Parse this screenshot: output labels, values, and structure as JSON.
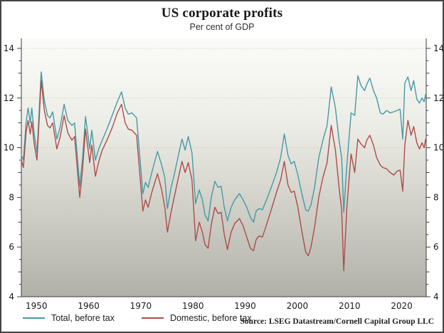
{
  "header": {
    "title": "US corporate profits",
    "subtitle": "Per cent of GDP"
  },
  "source": "Source: LSEG Datastream/Cornell Capital Group LLC",
  "legend": {
    "items": [
      {
        "label": "Total, before tax",
        "color": "#4799a3"
      },
      {
        "label": "Domestic, before tax",
        "color": "#ad4c48"
      }
    ]
  },
  "chart_data": {
    "type": "line",
    "title": "US corporate profits",
    "subtitle": "Per cent of GDP",
    "xlabel": "",
    "ylabel": "Per cent of GDP",
    "xlim": [
      1947.1,
      2024.7
    ],
    "ylim": [
      4,
      14.4
    ],
    "xticks": [
      1950,
      1960,
      1970,
      1980,
      1990,
      2000,
      2010,
      2020
    ],
    "yticks": [
      4,
      6,
      8,
      10,
      12,
      14
    ],
    "minor_tick_step": 0.5,
    "grid": "horizontal-dotted",
    "grid_color": "#c6c6be",
    "axis_color": "#3c3c3c",
    "label_color": "#1a1a1a",
    "bg_gradient": [
      "#fbfbf9",
      "#edede7",
      "#cfcfc7",
      "#b1b1a9"
    ],
    "legend_position": "bottom-left",
    "x": [
      1947.1,
      1947.5,
      1948.0,
      1948.4,
      1948.8,
      1949.1,
      1949.6,
      1950.1,
      1950.9,
      1951.5,
      1952.1,
      1952.6,
      1953.1,
      1953.9,
      1954.5,
      1955.3,
      1956.0,
      1956.8,
      1957.3,
      1958.3,
      1958.8,
      1959.4,
      1960.2,
      1960.6,
      1961.3,
      1962.0,
      1962.6,
      1963.5,
      1964.5,
      1965.5,
      1966.3,
      1967.0,
      1967.6,
      1968.3,
      1969.2,
      1970.4,
      1970.9,
      1971.4,
      1972.1,
      1973.2,
      1974.0,
      1974.6,
      1975.1,
      1975.8,
      1976.4,
      1977.1,
      1977.9,
      1978.5,
      1979.1,
      1979.8,
      1980.5,
      1981.2,
      1981.8,
      1982.3,
      1982.9,
      1983.5,
      1984.2,
      1984.8,
      1985.4,
      1986.0,
      1986.6,
      1987.3,
      1988.0,
      1988.9,
      1989.6,
      1990.3,
      1991.0,
      1991.6,
      1992.1,
      1992.7,
      1993.3,
      1994.1,
      1995.0,
      1996.0,
      1996.8,
      1997.5,
      1998.2,
      1998.8,
      1999.4,
      2000.1,
      2000.8,
      2001.6,
      2002.1,
      2002.6,
      2003.3,
      2004.1,
      2004.9,
      2005.7,
      2006.5,
      2007.3,
      2008.0,
      2008.5,
      2008.9,
      2009.5,
      2010.3,
      2011.0,
      2011.6,
      2012.2,
      2012.9,
      2013.3,
      2013.9,
      2014.6,
      2015.2,
      2015.9,
      2016.4,
      2017.1,
      2017.8,
      2018.5,
      2019.1,
      2019.7,
      2020.2,
      2020.6,
      2021.2,
      2021.8,
      2022.3,
      2022.9,
      2023.4,
      2023.9,
      2024.3,
      2024.6
    ],
    "series": [
      {
        "name": "Total, before tax",
        "color": "#4799a3",
        "values": [
          9.7,
          9.5,
          11.0,
          11.6,
          11.0,
          11.6,
          10.5,
          9.8,
          13.05,
          11.9,
          11.3,
          11.2,
          11.45,
          10.35,
          10.8,
          11.75,
          11.1,
          10.9,
          11.0,
          8.45,
          9.5,
          11.25,
          9.95,
          10.7,
          9.5,
          10.0,
          10.3,
          10.75,
          11.3,
          11.85,
          12.25,
          11.6,
          11.35,
          11.4,
          11.2,
          8.15,
          8.6,
          8.4,
          9.0,
          9.85,
          9.3,
          8.8,
          7.55,
          8.4,
          8.9,
          9.6,
          10.35,
          9.9,
          10.45,
          9.8,
          7.75,
          8.3,
          7.9,
          7.3,
          7.05,
          8.0,
          8.65,
          8.4,
          8.45,
          7.6,
          7.05,
          7.6,
          7.9,
          8.15,
          7.9,
          7.6,
          7.2,
          7.0,
          7.45,
          7.55,
          7.5,
          7.9,
          8.4,
          9.0,
          9.6,
          10.55,
          9.7,
          9.35,
          9.45,
          8.9,
          8.2,
          7.5,
          7.45,
          7.7,
          8.4,
          9.6,
          10.3,
          10.9,
          12.45,
          11.6,
          10.3,
          9.6,
          7.4,
          9.3,
          11.4,
          11.3,
          12.9,
          12.5,
          12.3,
          12.55,
          12.8,
          12.3,
          12.0,
          11.4,
          11.35,
          11.5,
          11.4,
          11.45,
          11.5,
          11.55,
          10.35,
          12.6,
          12.85,
          12.3,
          12.7,
          11.95,
          11.8,
          12.0,
          11.85,
          12.15
        ]
      },
      {
        "name": "Domestic, before tax",
        "color": "#ad4c48",
        "values": [
          9.5,
          9.2,
          10.6,
          11.1,
          10.55,
          11.05,
          10.1,
          9.5,
          12.7,
          11.5,
          10.9,
          10.8,
          11.0,
          9.95,
          10.4,
          11.3,
          10.6,
          10.3,
          10.45,
          8.0,
          9.05,
          10.75,
          9.4,
          10.1,
          8.85,
          9.5,
          9.9,
          10.3,
          10.8,
          11.4,
          11.75,
          11.0,
          10.75,
          10.7,
          10.5,
          7.45,
          7.9,
          7.6,
          8.2,
          8.95,
          8.3,
          7.6,
          6.6,
          7.4,
          8.0,
          8.7,
          9.45,
          9.0,
          9.4,
          8.7,
          6.25,
          7.0,
          6.6,
          6.1,
          5.95,
          6.9,
          7.6,
          7.35,
          7.4,
          6.5,
          5.9,
          6.6,
          6.95,
          7.15,
          6.85,
          6.4,
          5.95,
          5.85,
          6.3,
          6.45,
          6.4,
          6.9,
          7.5,
          8.2,
          8.7,
          9.45,
          8.5,
          8.2,
          8.25,
          7.6,
          6.7,
          5.8,
          5.65,
          6.0,
          6.8,
          8.0,
          8.8,
          9.4,
          10.9,
          9.9,
          8.4,
          7.5,
          5.05,
          7.6,
          9.75,
          9.0,
          10.35,
          10.15,
          10.0,
          10.3,
          10.5,
          10.1,
          9.6,
          9.3,
          9.2,
          9.15,
          9.0,
          8.9,
          9.05,
          9.1,
          8.25,
          10.1,
          11.1,
          10.5,
          10.85,
          10.2,
          9.95,
          10.2,
          10.0,
          10.35
        ]
      }
    ]
  }
}
